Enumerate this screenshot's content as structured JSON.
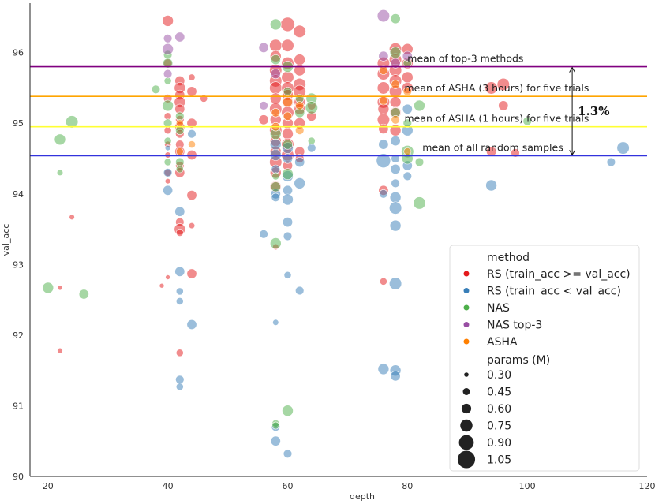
{
  "chart_data": {
    "type": "scatter",
    "xlabel": "depth",
    "ylabel": "val_acc",
    "xlim": [
      17,
      120
    ],
    "ylim": [
      90,
      96.7
    ],
    "xticks": [
      20,
      40,
      60,
      80,
      100,
      120
    ],
    "yticks": [
      90,
      91,
      92,
      93,
      94,
      95,
      96
    ],
    "colors": {
      "RS_ge": "#e41a1c",
      "RS_lt": "#377eb8",
      "NAS": "#4daf4a",
      "NAS_top3": "#984ea3",
      "ASHA": "#ff7f00"
    },
    "hlines": [
      {
        "y": 95.8,
        "color": "#800080",
        "label": "mean of top-3 methods",
        "label_x": 80
      },
      {
        "y": 95.38,
        "color": "#ffa500",
        "label": "mean of ASHA (3 hours) for five trials",
        "label_x": 79.5
      },
      {
        "y": 94.95,
        "color": "#ffff33",
        "label": "mean of ASHA (1 hours) for five trials",
        "label_x": 79.5
      },
      {
        "y": 94.54,
        "color": "#3333dd",
        "label": "mean of all random samples",
        "label_x": 82.5
      }
    ],
    "gap_annotation": {
      "x": 107.5,
      "y_top": 95.8,
      "y_bottom": 94.54,
      "label": "1.3%"
    },
    "legend": {
      "title": "method",
      "items": [
        {
          "key": "RS_ge",
          "label": "RS (train_acc >= val_acc)"
        },
        {
          "key": "RS_lt",
          "label": "RS (train_acc < val_acc)"
        },
        {
          "key": "NAS",
          "label": "NAS"
        },
        {
          "key": "NAS_top3",
          "label": "NAS top-3"
        },
        {
          "key": "ASHA",
          "label": "ASHA"
        }
      ],
      "size_title": "params (M)",
      "sizes": [
        "0.30",
        "0.45",
        "0.60",
        "0.75",
        "0.90",
        "1.05"
      ],
      "placement": "lower-right"
    },
    "series": [
      {
        "name": "RS (train_acc >= val_acc)",
        "key": "RS_ge",
        "points": [
          [
            22,
            92.67,
            0.3
          ],
          [
            22,
            91.78,
            0.35
          ],
          [
            24,
            93.67,
            0.35
          ],
          [
            39,
            92.7,
            0.3
          ],
          [
            40,
            92.82,
            0.3
          ],
          [
            40,
            96.45,
            0.8
          ],
          [
            40,
            95.85,
            0.6
          ],
          [
            40,
            95.35,
            0.6
          ],
          [
            40,
            95.1,
            0.5
          ],
          [
            40,
            94.9,
            0.5
          ],
          [
            40,
            94.7,
            0.45
          ],
          [
            40,
            94.55,
            0.4
          ],
          [
            40,
            94.3,
            0.5
          ],
          [
            40,
            94.18,
            0.35
          ],
          [
            42,
            95.6,
            0.7
          ],
          [
            42,
            95.5,
            0.8
          ],
          [
            42,
            95.4,
            0.7
          ],
          [
            42,
            95.3,
            0.8
          ],
          [
            42,
            95.2,
            0.7
          ],
          [
            42,
            95.05,
            0.6
          ],
          [
            42,
            94.95,
            0.7
          ],
          [
            42,
            94.85,
            0.6
          ],
          [
            42,
            94.7,
            0.6
          ],
          [
            42,
            94.6,
            0.7
          ],
          [
            42,
            94.4,
            0.6
          ],
          [
            42,
            94.3,
            0.7
          ],
          [
            42,
            93.6,
            0.6
          ],
          [
            42,
            93.5,
            0.8
          ],
          [
            42,
            93.45,
            0.5
          ],
          [
            42,
            91.75,
            0.5
          ],
          [
            44,
            95.65,
            0.45
          ],
          [
            44,
            95.45,
            0.7
          ],
          [
            44,
            95.0,
            0.7
          ],
          [
            44,
            94.55,
            0.7
          ],
          [
            44,
            93.98,
            0.7
          ],
          [
            44,
            93.55,
            0.4
          ],
          [
            44,
            92.87,
            0.7
          ],
          [
            46,
            95.35,
            0.5
          ],
          [
            58,
            96.1,
            0.9
          ],
          [
            58,
            95.95,
            0.8
          ],
          [
            58,
            95.75,
            0.9
          ],
          [
            58,
            95.6,
            0.9
          ],
          [
            58,
            95.5,
            0.9
          ],
          [
            58,
            95.35,
            0.8
          ],
          [
            58,
            95.2,
            0.9
          ],
          [
            58,
            95.05,
            0.8
          ],
          [
            58,
            94.9,
            0.9
          ],
          [
            58,
            94.75,
            0.8
          ],
          [
            58,
            94.6,
            0.8
          ],
          [
            58,
            94.45,
            0.9
          ],
          [
            58,
            94.3,
            0.8
          ],
          [
            58,
            94.1,
            0.8
          ],
          [
            58,
            93.25,
            0.4
          ],
          [
            60,
            96.4,
            1.05
          ],
          [
            60,
            96.1,
            0.9
          ],
          [
            60,
            95.85,
            0.9
          ],
          [
            60,
            95.65,
            0.9
          ],
          [
            60,
            95.5,
            0.9
          ],
          [
            60,
            95.4,
            0.8
          ],
          [
            60,
            95.3,
            0.8
          ],
          [
            60,
            95.15,
            0.9
          ],
          [
            60,
            95.0,
            0.8
          ],
          [
            60,
            94.85,
            0.8
          ],
          [
            60,
            94.7,
            0.9
          ],
          [
            60,
            94.55,
            0.9
          ],
          [
            60,
            94.4,
            0.7
          ],
          [
            62,
            96.3,
            0.9
          ],
          [
            62,
            95.9,
            0.8
          ],
          [
            62,
            95.75,
            0.8
          ],
          [
            62,
            95.55,
            0.9
          ],
          [
            62,
            95.45,
            0.9
          ],
          [
            62,
            95.3,
            0.8
          ],
          [
            62,
            95.2,
            0.8
          ],
          [
            62,
            95.0,
            0.8
          ],
          [
            62,
            94.6,
            0.7
          ],
          [
            62,
            94.5,
            0.6
          ],
          [
            64,
            95.1,
            0.7
          ],
          [
            64,
            95.25,
            0.6
          ],
          [
            56,
            95.05,
            0.7
          ],
          [
            76,
            95.85,
            0.9
          ],
          [
            76,
            95.7,
            0.9
          ],
          [
            76,
            95.5,
            0.9
          ],
          [
            76,
            95.3,
            0.9
          ],
          [
            76,
            95.2,
            0.8
          ],
          [
            76,
            95.05,
            0.9
          ],
          [
            76,
            94.92,
            0.7
          ],
          [
            76,
            94.05,
            0.7
          ],
          [
            76,
            92.76,
            0.5
          ],
          [
            78,
            96.05,
            0.9
          ],
          [
            78,
            95.9,
            0.9
          ],
          [
            78,
            95.75,
            0.9
          ],
          [
            78,
            95.6,
            0.9
          ],
          [
            78,
            95.45,
            0.9
          ],
          [
            78,
            95.3,
            0.8
          ],
          [
            78,
            95.15,
            0.8
          ],
          [
            78,
            94.9,
            0.8
          ],
          [
            80,
            96.05,
            0.8
          ],
          [
            80,
            95.85,
            0.8
          ],
          [
            80,
            95.65,
            0.8
          ],
          [
            80,
            95.5,
            0.8
          ],
          [
            94,
            95.5,
            0.9
          ],
          [
            94,
            94.6,
            0.7
          ],
          [
            96,
            95.55,
            0.9
          ],
          [
            96,
            95.25,
            0.7
          ],
          [
            98,
            94.58,
            0.6
          ]
        ]
      },
      {
        "name": "RS (train_acc < val_acc)",
        "key": "RS_lt",
        "points": [
          [
            40,
            94.65,
            0.35
          ],
          [
            40,
            94.3,
            0.6
          ],
          [
            40,
            94.05,
            0.7
          ],
          [
            42,
            93.75,
            0.7
          ],
          [
            42,
            92.9,
            0.7
          ],
          [
            42,
            92.62,
            0.5
          ],
          [
            42,
            92.48,
            0.5
          ],
          [
            42,
            91.37,
            0.6
          ],
          [
            42,
            91.27,
            0.5
          ],
          [
            44,
            94.85,
            0.6
          ],
          [
            44,
            92.15,
            0.7
          ],
          [
            56,
            93.43,
            0.6
          ],
          [
            58,
            94.7,
            0.8
          ],
          [
            58,
            94.55,
            0.8
          ],
          [
            58,
            94.35,
            0.6
          ],
          [
            58,
            94.0,
            0.7
          ],
          [
            58,
            93.95,
            0.6
          ],
          [
            58,
            92.18,
            0.4
          ],
          [
            58,
            90.7,
            0.6
          ],
          [
            58,
            90.5,
            0.7
          ],
          [
            60,
            94.65,
            0.8
          ],
          [
            60,
            94.5,
            0.7
          ],
          [
            60,
            94.25,
            0.8
          ],
          [
            60,
            94.05,
            0.7
          ],
          [
            60,
            93.92,
            0.8
          ],
          [
            60,
            93.6,
            0.7
          ],
          [
            60,
            93.4,
            0.6
          ],
          [
            60,
            92.85,
            0.5
          ],
          [
            60,
            90.32,
            0.6
          ],
          [
            62,
            94.45,
            0.7
          ],
          [
            62,
            94.15,
            0.8
          ],
          [
            62,
            92.63,
            0.6
          ],
          [
            64,
            94.65,
            0.6
          ],
          [
            76,
            94.7,
            0.7
          ],
          [
            76,
            94.47,
            1.05
          ],
          [
            76,
            94.0,
            0.6
          ],
          [
            76,
            91.52,
            0.8
          ],
          [
            78,
            94.75,
            0.7
          ],
          [
            78,
            94.5,
            0.6
          ],
          [
            78,
            94.35,
            0.7
          ],
          [
            78,
            94.15,
            0.6
          ],
          [
            78,
            93.95,
            0.8
          ],
          [
            78,
            93.8,
            0.9
          ],
          [
            78,
            93.55,
            0.8
          ],
          [
            78,
            92.73,
            0.9
          ],
          [
            78,
            91.5,
            0.8
          ],
          [
            78,
            91.42,
            0.7
          ],
          [
            80,
            95.2,
            0.7
          ],
          [
            80,
            94.9,
            0.8
          ],
          [
            80,
            94.4,
            0.7
          ],
          [
            80,
            94.25,
            0.6
          ],
          [
            94,
            94.12,
            0.8
          ],
          [
            114,
            94.45,
            0.6
          ],
          [
            116,
            94.65,
            0.9
          ]
        ]
      },
      {
        "name": "NAS",
        "key": "NAS",
        "points": [
          [
            20,
            92.67,
            0.8
          ],
          [
            22,
            94.77,
            0.8
          ],
          [
            22,
            94.3,
            0.4
          ],
          [
            24,
            95.02,
            0.9
          ],
          [
            26,
            92.58,
            0.7
          ],
          [
            38,
            95.48,
            0.6
          ],
          [
            40,
            95.97,
            0.6
          ],
          [
            40,
            95.85,
            0.7
          ],
          [
            40,
            95.6,
            0.5
          ],
          [
            40,
            95.25,
            0.8
          ],
          [
            40,
            95.0,
            0.6
          ],
          [
            40,
            94.75,
            0.5
          ],
          [
            40,
            94.45,
            0.5
          ],
          [
            42,
            95.1,
            0.6
          ],
          [
            42,
            94.9,
            0.6
          ],
          [
            42,
            94.45,
            0.6
          ],
          [
            42,
            94.35,
            0.5
          ],
          [
            58,
            96.4,
            0.8
          ],
          [
            58,
            95.9,
            0.7
          ],
          [
            58,
            94.85,
            0.8
          ],
          [
            58,
            94.25,
            0.5
          ],
          [
            58,
            94.1,
            0.7
          ],
          [
            58,
            93.3,
            0.8
          ],
          [
            58,
            90.75,
            0.5
          ],
          [
            58,
            90.72,
            0.5
          ],
          [
            60,
            95.8,
            0.8
          ],
          [
            60,
            95.45,
            0.6
          ],
          [
            60,
            94.7,
            0.7
          ],
          [
            60,
            94.28,
            0.8
          ],
          [
            60,
            90.93,
            0.8
          ],
          [
            62,
            95.35,
            0.6
          ],
          [
            62,
            95.15,
            0.7
          ],
          [
            64,
            95.35,
            0.8
          ],
          [
            64,
            95.22,
            0.9
          ],
          [
            64,
            94.75,
            0.5
          ],
          [
            78,
            96.48,
            0.7
          ],
          [
            78,
            96.0,
            0.8
          ],
          [
            78,
            95.15,
            0.7
          ],
          [
            80,
            95.85,
            0.6
          ],
          [
            80,
            95.0,
            0.6
          ],
          [
            80,
            94.6,
            0.9
          ],
          [
            80,
            94.5,
            0.8
          ],
          [
            82,
            95.25,
            0.8
          ],
          [
            82,
            94.45,
            0.6
          ],
          [
            82,
            93.87,
            0.9
          ],
          [
            100,
            95.03,
            0.6
          ]
        ]
      },
      {
        "name": "NAS top-3",
        "key": "NAS_top3",
        "points": [
          [
            40,
            96.2,
            0.6
          ],
          [
            40,
            96.05,
            0.8
          ],
          [
            40,
            95.7,
            0.6
          ],
          [
            42,
            96.22,
            0.7
          ],
          [
            56,
            96.07,
            0.7
          ],
          [
            56,
            95.25,
            0.6
          ],
          [
            58,
            95.7,
            0.7
          ],
          [
            76,
            96.52,
            0.9
          ],
          [
            76,
            95.95,
            0.7
          ],
          [
            78,
            95.85,
            0.7
          ],
          [
            80,
            95.95,
            0.7
          ]
        ]
      },
      {
        "name": "ASHA",
        "key": "ASHA",
        "points": [
          [
            42,
            95.0,
            0.5
          ],
          [
            42,
            94.6,
            0.5
          ],
          [
            44,
            94.7,
            0.5
          ],
          [
            58,
            95.15,
            0.6
          ],
          [
            58,
            94.95,
            0.6
          ],
          [
            60,
            95.3,
            0.7
          ],
          [
            60,
            95.1,
            0.6
          ],
          [
            62,
            94.9,
            0.6
          ],
          [
            62,
            95.25,
            0.6
          ],
          [
            76,
            95.32,
            0.6
          ],
          [
            76,
            95.75,
            0.6
          ],
          [
            78,
            95.05,
            0.6
          ],
          [
            78,
            95.55,
            0.6
          ],
          [
            80,
            95.45,
            0.6
          ],
          [
            80,
            94.6,
            0.5
          ]
        ]
      }
    ]
  }
}
